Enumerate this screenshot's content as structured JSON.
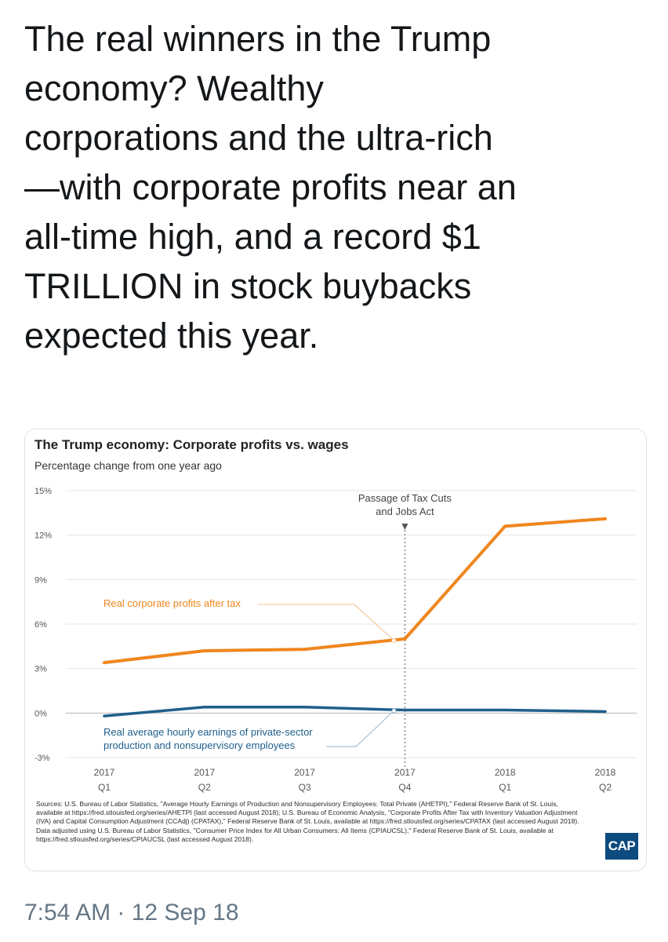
{
  "tweet": {
    "text": "The real winners in the Trump\neconomy? Wealthy\ncorporations and the ultra-rich\n—with corporate profits near an\nall-time high, and a record $1\nTRILLION in stock buybacks\nexpected this year.",
    "timestamp": "7:54 AM · 12 Sep 18"
  },
  "card": {
    "logo_text": "CAP",
    "sources": "Sources: U.S. Bureau of Labor Statistics, \"Average Hourly Earnings of Production and Nonsupervisory Employees: Total Private (AHETPI),\" Federal Reserve Bank of St. Louis, available at https://fred.stlouisfed.org/series/AHETPI (last accessed August 2018); U.S. Bureau of Economic Analysis, \"Corporate Profits After Tax with Inventory Valuation Adjustment (IVA) and Capital Consumption Adjustment (CCAdj) (CPATAX),\" Federal Reserve Bank of St. Louis, available at https://fred.stlouisfed.org/series/CPATAX (last accessed August 2018). Data adjusted using U.S. Bureau of Labor Statistics, \"Consumer Price Index for All Urban Consumers: All Items (CPIAUCSL),\" Federal Reserve Bank of St. Louis, available at https://fred.stlouisfed.org/series/CPIAUCSL (last accessed August 2018)."
  },
  "chart_data": {
    "type": "line",
    "title": "The Trump economy: Corporate profits vs. wages",
    "subtitle": "Percentage change from one year ago",
    "x": [
      "2017 Q1",
      "2017 Q2",
      "2017 Q3",
      "2017 Q4",
      "2018 Q1",
      "2018 Q2"
    ],
    "x_ticks": [
      {
        "year": "2017",
        "quarter": "Q1"
      },
      {
        "year": "2017",
        "quarter": "Q2"
      },
      {
        "year": "2017",
        "quarter": "Q3"
      },
      {
        "year": "2017",
        "quarter": "Q4"
      },
      {
        "year": "2018",
        "quarter": "Q1"
      },
      {
        "year": "2018",
        "quarter": "Q2"
      }
    ],
    "ylim": [
      -3,
      15
    ],
    "y_ticks": [
      {
        "value": 15,
        "label": "15%"
      },
      {
        "value": 12,
        "label": "12%"
      },
      {
        "value": 9,
        "label": "9%"
      },
      {
        "value": 6,
        "label": "6%"
      },
      {
        "value": 3,
        "label": "3%"
      },
      {
        "value": 0,
        "label": "0%"
      },
      {
        "value": -3,
        "label": "-3%"
      }
    ],
    "grid": true,
    "series": [
      {
        "name": "Real corporate profits after tax",
        "color": "#f0861e",
        "values": [
          3.4,
          4.2,
          4.3,
          5.0,
          12.6,
          13.1
        ]
      },
      {
        "name": "Real average hourly earnings of private-sector production and nonsupervisory employees",
        "label_lines": [
          "Real average hourly earnings of private-sector",
          "production and nonsupervisory employees"
        ],
        "color": "#1f5f8b",
        "values": [
          -0.2,
          0.4,
          0.4,
          0.2,
          0.2,
          0.1
        ]
      }
    ],
    "annotation": {
      "lines": [
        "Passage of Tax Cuts",
        "and Jobs Act"
      ],
      "x": "2017 Q4"
    }
  }
}
